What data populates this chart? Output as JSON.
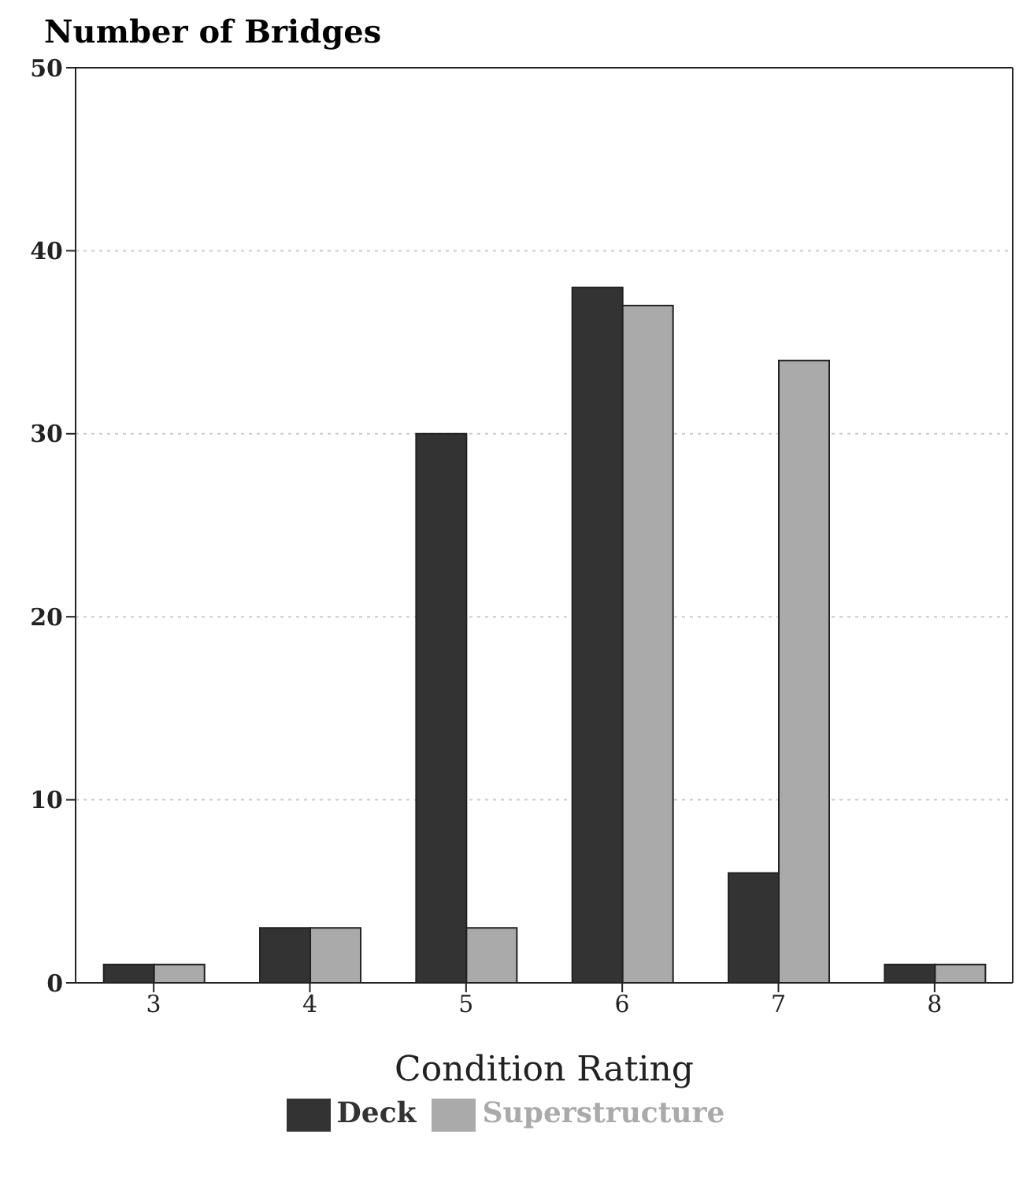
{
  "chart_data": {
    "type": "bar",
    "ylabel": "Number of Bridges",
    "xlabel": "Condition Rating",
    "categories": [
      "3",
      "4",
      "5",
      "6",
      "7",
      "8"
    ],
    "series": [
      {
        "name": "Deck",
        "color": "#333333",
        "values": [
          1,
          3,
          30,
          38,
          6,
          1
        ]
      },
      {
        "name": "Superstructure",
        "color": "#aaaaaa",
        "values": [
          1,
          3,
          3,
          37,
          34,
          1
        ]
      }
    ],
    "ylim": [
      0,
      50
    ],
    "yticks": [
      0,
      10,
      20,
      30,
      40,
      50
    ],
    "grid": "y",
    "legend": "bottom"
  }
}
